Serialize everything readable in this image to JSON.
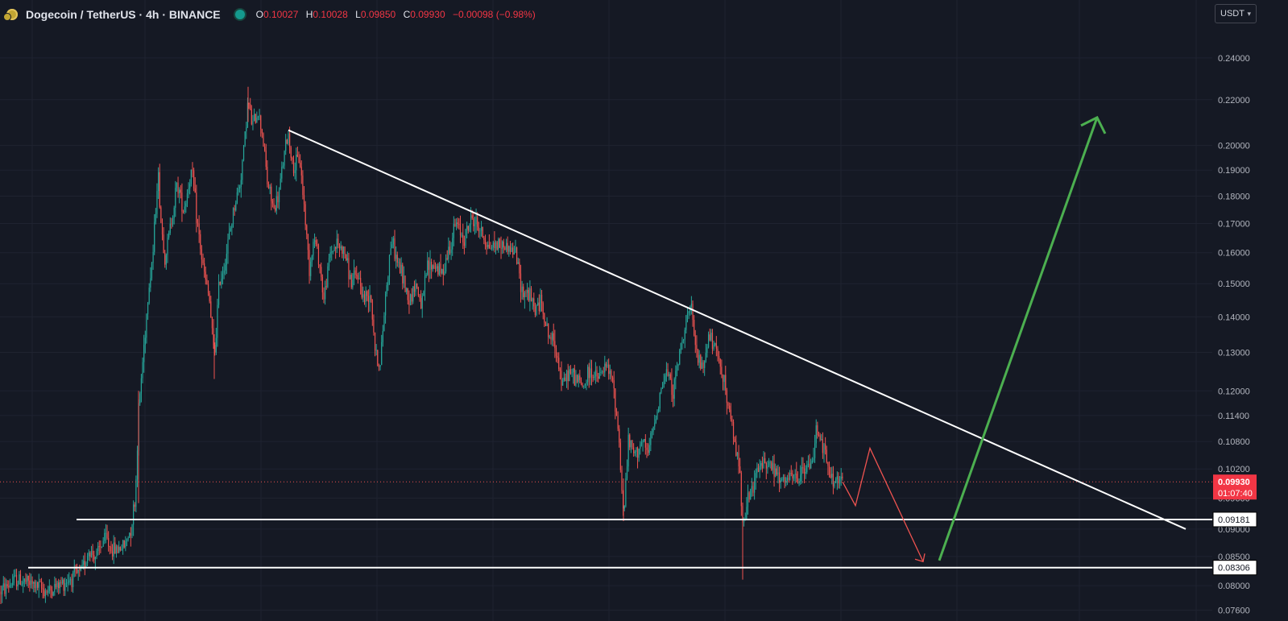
{
  "header": {
    "title": "Dogecoin / TetherUS · 4h · BINANCE",
    "ohlc": {
      "o_label": "O",
      "o": "0.10027",
      "h_label": "H",
      "h": "0.10028",
      "l_label": "L",
      "l": "0.09850",
      "c_label": "C",
      "c": "0.09930",
      "change": "−0.00098 (−0.98%)"
    },
    "currency": "USDT"
  },
  "colors": {
    "background": "#151924",
    "grid": "#1f2330",
    "up": "#26a69a",
    "down": "#ef5350",
    "drawing_white": "#ffffff",
    "arrow_green": "#4caf50",
    "price_badge": "#f23645"
  },
  "chart_data": {
    "type": "candlestick",
    "symbol": "DOGEUSDT",
    "timeframe": "4h",
    "scale": "log",
    "ylim": [
      0.075,
      0.245
    ],
    "y_ticks": [
      "0.24000",
      "0.22000",
      "0.20000",
      "0.19000",
      "0.18000",
      "0.17000",
      "0.16000",
      "0.15000",
      "0.14000",
      "0.13000",
      "0.12000",
      "0.11400",
      "0.10800",
      "0.10200",
      "0.09600",
      "0.09000",
      "0.08500",
      "0.08000",
      "0.07600"
    ],
    "y_tick_values": [
      0.24,
      0.22,
      0.2,
      0.19,
      0.18,
      0.17,
      0.16,
      0.15,
      0.14,
      0.13,
      0.12,
      0.114,
      0.108,
      0.102,
      0.096,
      0.09,
      0.085,
      0.08,
      0.076
    ],
    "bar_count": 640,
    "bars_visible_range": [
      0,
      1599
    ],
    "price_path": [
      [
        0,
        0.079
      ],
      [
        20,
        0.081
      ],
      [
        35,
        0.0805
      ],
      [
        60,
        0.079
      ],
      [
        90,
        0.0815
      ],
      [
        100,
        0.082
      ],
      [
        110,
        0.086
      ],
      [
        120,
        0.085
      ],
      [
        130,
        0.0885
      ],
      [
        140,
        0.086
      ],
      [
        155,
        0.087
      ],
      [
        162,
        0.09
      ],
      [
        168,
        0.096
      ],
      [
        172,
        0.115
      ],
      [
        178,
        0.13
      ],
      [
        185,
        0.15
      ],
      [
        190,
        0.16
      ],
      [
        196,
        0.19
      ],
      [
        200,
        0.17
      ],
      [
        205,
        0.158
      ],
      [
        212,
        0.17
      ],
      [
        220,
        0.185
      ],
      [
        228,
        0.175
      ],
      [
        238,
        0.19
      ],
      [
        245,
        0.17
      ],
      [
        252,
        0.155
      ],
      [
        260,
        0.145
      ],
      [
        266,
        0.128
      ],
      [
        272,
        0.15
      ],
      [
        280,
        0.158
      ],
      [
        290,
        0.175
      ],
      [
        298,
        0.185
      ],
      [
        303,
        0.2
      ],
      [
        308,
        0.22
      ],
      [
        313,
        0.208
      ],
      [
        320,
        0.215
      ],
      [
        326,
        0.205
      ],
      [
        332,
        0.185
      ],
      [
        340,
        0.175
      ],
      [
        346,
        0.18
      ],
      [
        352,
        0.195
      ],
      [
        358,
        0.205
      ],
      [
        364,
        0.19
      ],
      [
        372,
        0.195
      ],
      [
        378,
        0.175
      ],
      [
        384,
        0.155
      ],
      [
        390,
        0.165
      ],
      [
        396,
        0.158
      ],
      [
        402,
        0.145
      ],
      [
        410,
        0.16
      ],
      [
        418,
        0.163
      ],
      [
        428,
        0.16
      ],
      [
        436,
        0.15
      ],
      [
        444,
        0.153
      ],
      [
        452,
        0.145
      ],
      [
        460,
        0.148
      ],
      [
        466,
        0.13
      ],
      [
        472,
        0.126
      ],
      [
        478,
        0.145
      ],
      [
        486,
        0.165
      ],
      [
        492,
        0.158
      ],
      [
        500,
        0.152
      ],
      [
        508,
        0.145
      ],
      [
        516,
        0.15
      ],
      [
        524,
        0.143
      ],
      [
        530,
        0.155
      ],
      [
        540,
        0.156
      ],
      [
        548,
        0.153
      ],
      [
        556,
        0.16
      ],
      [
        566,
        0.17
      ],
      [
        576,
        0.165
      ],
      [
        586,
        0.172
      ],
      [
        596,
        0.168
      ],
      [
        606,
        0.162
      ],
      [
        618,
        0.163
      ],
      [
        630,
        0.162
      ],
      [
        640,
        0.16
      ],
      [
        648,
        0.148
      ],
      [
        656,
        0.147
      ],
      [
        664,
        0.142
      ],
      [
        672,
        0.145
      ],
      [
        680,
        0.135
      ],
      [
        690,
        0.132
      ],
      [
        698,
        0.121
      ],
      [
        706,
        0.125
      ],
      [
        716,
        0.123
      ],
      [
        724,
        0.121
      ],
      [
        732,
        0.125
      ],
      [
        742,
        0.123
      ],
      [
        752,
        0.126
      ],
      [
        760,
        0.123
      ],
      [
        768,
        0.11
      ],
      [
        774,
        0.092
      ],
      [
        780,
        0.108
      ],
      [
        788,
        0.105
      ],
      [
        796,
        0.108
      ],
      [
        804,
        0.105
      ],
      [
        812,
        0.112
      ],
      [
        820,
        0.12
      ],
      [
        828,
        0.125
      ],
      [
        836,
        0.12
      ],
      [
        844,
        0.13
      ],
      [
        852,
        0.14
      ],
      [
        858,
        0.142
      ],
      [
        864,
        0.13
      ],
      [
        872,
        0.125
      ],
      [
        880,
        0.135
      ],
      [
        888,
        0.13
      ],
      [
        896,
        0.126
      ],
      [
        904,
        0.116
      ],
      [
        912,
        0.108
      ],
      [
        918,
        0.102
      ],
      [
        922,
        0.092
      ],
      [
        928,
        0.095
      ],
      [
        934,
        0.098
      ],
      [
        942,
        0.102
      ],
      [
        950,
        0.104
      ],
      [
        960,
        0.102
      ],
      [
        970,
        0.099
      ],
      [
        980,
        0.1
      ],
      [
        990,
        0.1
      ],
      [
        1000,
        0.102
      ],
      [
        1008,
        0.103
      ],
      [
        1014,
        0.112
      ],
      [
        1020,
        0.108
      ],
      [
        1028,
        0.102
      ],
      [
        1034,
        0.099
      ],
      [
        1040,
        0.1
      ],
      [
        1046,
        0.0993
      ]
    ],
    "annotations": {
      "trendline": {
        "from": [
          358,
          0.2065
        ],
        "to": [
          1472,
          0.09
        ],
        "color": "white"
      },
      "support_upper": {
        "price": 0.09181,
        "label": "0.09181",
        "x_from": 95
      },
      "support_lower": {
        "price": 0.08306,
        "label": "0.08306",
        "x_from": 35
      },
      "projection_red": [
        [
          1046,
          0.0993
        ],
        [
          1062,
          0.0945
        ],
        [
          1080,
          0.1065
        ],
        [
          1146,
          0.0841
        ]
      ],
      "arrow_green": {
        "from": [
          1166,
          0.0843
        ],
        "to": [
          1362,
          0.212
        ]
      }
    },
    "last_price": {
      "value": "0.09930",
      "countdown": "01:07:40"
    },
    "hidden_tick_label": "0.09600"
  }
}
